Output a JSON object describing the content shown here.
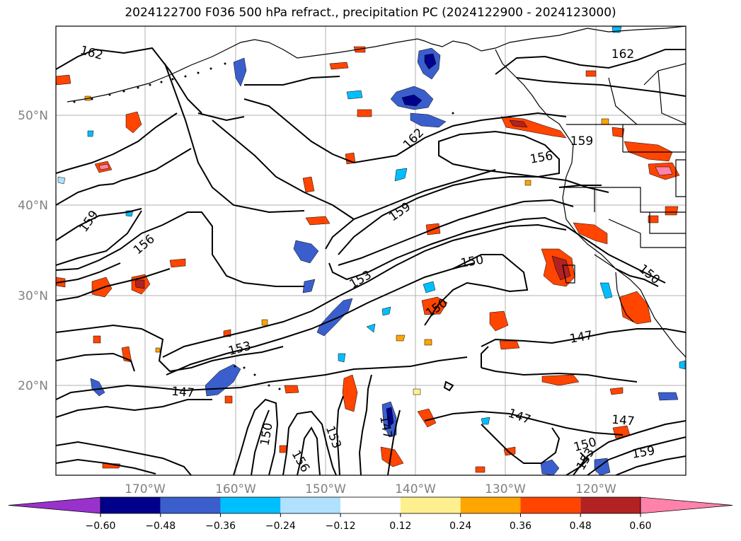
{
  "title": "2024122700 F036 500 hPa refract., precipitation PC (2024122900 - 2024123000)",
  "lat_labels": [
    "50°N",
    "40°N",
    "30°N",
    "20°N"
  ],
  "lon_labels": [
    "170°W",
    "160°W",
    "150°W",
    "140°W",
    "130°W",
    "120°W"
  ],
  "contour_labels": [
    {
      "text": "162",
      "angle": 15
    },
    {
      "text": "162",
      "angle": 0
    },
    {
      "text": "162",
      "angle": -45
    },
    {
      "text": "159",
      "angle": -55
    },
    {
      "text": "159",
      "angle": -35
    },
    {
      "text": "159",
      "angle": 0
    },
    {
      "text": "156",
      "angle": -40
    },
    {
      "text": "156",
      "angle": 0
    },
    {
      "text": "153",
      "angle": -30
    },
    {
      "text": "153",
      "angle": -15
    },
    {
      "text": "150",
      "angle": -10
    },
    {
      "text": "150",
      "angle": -35
    },
    {
      "text": "150",
      "angle": 40
    },
    {
      "text": "147",
      "angle": 5
    },
    {
      "text": "147",
      "angle": -10
    },
    {
      "text": "147",
      "angle": 20
    },
    {
      "text": "147",
      "angle": 5
    },
    {
      "text": "150",
      "angle": -80
    },
    {
      "text": "153",
      "angle": 70
    },
    {
      "text": "156",
      "angle": 60
    },
    {
      "text": "147",
      "angle": 80
    },
    {
      "text": "150",
      "angle": -15
    },
    {
      "text": "153",
      "angle": -60
    },
    {
      "text": "159",
      "angle": -10
    }
  ],
  "colorbar": {
    "ticks": [
      "−0.60",
      "−0.48",
      "−0.36",
      "−0.24",
      "−0.12",
      "0.12",
      "0.24",
      "0.36",
      "0.48",
      "0.60"
    ],
    "colors": [
      "#9932cc",
      "#00008b",
      "#3a5fcd",
      "#00bfff",
      "#b0e2ff",
      "#ffffff",
      "#fff08f",
      "#ffa500",
      "#ff4500",
      "#b22222",
      "#ff82ab"
    ]
  },
  "colors": {
    "positive_light": "#fff08f",
    "positive_mid": "#ffa500",
    "positive_strong": "#ff4500",
    "positive_max": "#b22222",
    "negative_light": "#b0e2ff",
    "negative_mid": "#00bfff",
    "negative_strong": "#3a5fcd",
    "negative_max": "#00008b"
  }
}
